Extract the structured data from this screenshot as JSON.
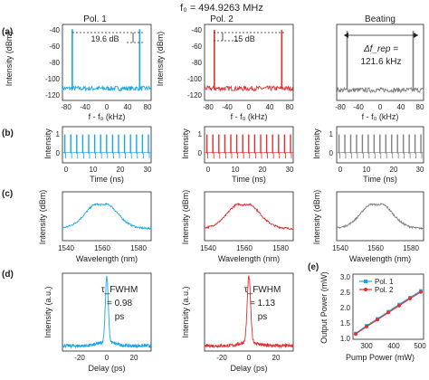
{
  "figure_title": "f₀ = 494.9263 MHz",
  "colors": {
    "pol1": "#1aa5e6",
    "pol2": "#e32d2d",
    "beat": "#7f7f7f",
    "axis": "#222222",
    "dash": "#222222"
  },
  "row_a": {
    "label": "(a)",
    "panels": [
      {
        "title": "Pol. 1",
        "annotation": "19.6 dB",
        "xlabel": "f - f₀ (kHz)",
        "ylabel": "Intensity (dBm)",
        "xticks": [
          "-80",
          "-40",
          "0",
          "40",
          "80"
        ],
        "yticks": [
          "-40",
          "-60",
          "-80",
          "-100",
          "-120"
        ]
      },
      {
        "title": "Pol. 2",
        "annotation": "15 dB",
        "xlabel": "f - f₀ (kHz)",
        "ylabel": "Intensity (dBm)",
        "xticks": [
          "-80",
          "-40",
          "0",
          "40",
          "80"
        ],
        "yticks": [
          "-40",
          "-60",
          "-80",
          "-100",
          "-120"
        ]
      },
      {
        "title": "Beating",
        "annotation_line1": "Δf_rep =",
        "annotation_line2": "121.6 kHz",
        "xlabel": "f - f₀ (kHz)",
        "xticks": [
          "-80",
          "-40",
          "0",
          "40",
          "80"
        ]
      }
    ]
  },
  "row_b": {
    "label": "(b)",
    "panels": [
      {
        "xlabel": "Time (ns)",
        "ylabel": "Intensity",
        "xticks": [
          "0",
          "10",
          "20",
          "30"
        ],
        "yticks": [
          "1",
          "0"
        ]
      },
      {
        "xlabel": "Time (ns)",
        "ylabel": "Intensity",
        "xticks": [
          "0",
          "10",
          "20",
          "30"
        ],
        "yticks": [
          "1",
          "0"
        ]
      },
      {
        "xlabel": "Time (ns)",
        "ylabel": "Intensity",
        "xticks": [
          "0",
          "10",
          "20",
          "30"
        ],
        "yticks": [
          "1",
          "0"
        ]
      }
    ]
  },
  "row_c": {
    "label": "(c)",
    "panels": [
      {
        "xlabel": "Wavelength (nm)",
        "ylabel": "Intensity (dBm)",
        "xticks": [
          "1540",
          "1560",
          "1580"
        ]
      },
      {
        "xlabel": "Wavelength (nm)",
        "ylabel": "Intensity (dBm)",
        "xticks": [
          "1540",
          "1560",
          "1580"
        ]
      },
      {
        "xlabel": "Wavelength (nm)",
        "ylabel": "Intensity (dBm)",
        "xticks": [
          "1540",
          "1560",
          "1580"
        ]
      }
    ]
  },
  "row_d": {
    "label": "(d)",
    "panels": [
      {
        "annotation_line1": "τ_FWHM",
        "annotation_line2": "= 0.98",
        "annotation_line3": "ps",
        "xlabel": "Delay (ps)",
        "ylabel": "Intensity (a.u.)",
        "xticks": [
          "-20",
          "0",
          "20"
        ]
      },
      {
        "annotation_line1": "τ_FWHM",
        "annotation_line2": "= 1.13",
        "annotation_line3": "ps",
        "xlabel": "Delay (ps)",
        "ylabel": "Intensity (a.u.)",
        "xticks": [
          "-20",
          "0",
          "20"
        ]
      }
    ]
  },
  "panel_e": {
    "label": "(e)",
    "xlabel": "Pump Power (mW)",
    "ylabel": "Output Power (mW)",
    "xticks": [
      "300",
      "400",
      "500"
    ],
    "yticks": [
      "1.0",
      "1.5",
      "2.0",
      "2.5",
      "3.0"
    ],
    "legend": [
      "Pol. 1",
      "Pol. 2"
    ]
  },
  "chart_data": [
    {
      "type": "line",
      "panel": "a1",
      "x": [
        -62.3,
        59.3
      ],
      "y": [
        -36,
        -36
      ],
      "xlim": [
        -80,
        80
      ],
      "ylim": [
        -125,
        -30
      ],
      "noise_floor": -110
    },
    {
      "type": "line",
      "panel": "a2",
      "x": [
        -62.3,
        59.3
      ],
      "y": [
        -37,
        -37
      ],
      "xlim": [
        -80,
        80
      ],
      "ylim": [
        -125,
        -30
      ],
      "noise_floor": -110
    },
    {
      "type": "line",
      "panel": "a3",
      "x": [
        -60.8,
        60.8
      ],
      "y": [
        -38,
        -38
      ],
      "xlim": [
        -80,
        80
      ],
      "ylim": [
        -125,
        -30
      ],
      "noise_floor": -112
    },
    {
      "type": "line",
      "panel": "b1",
      "period_ns": 2.02,
      "xlim": [
        0,
        30
      ],
      "ylim": [
        -0.6,
        1.5
      ]
    },
    {
      "type": "line",
      "panel": "b2",
      "period_ns": 2.02,
      "xlim": [
        0,
        30
      ],
      "ylim": [
        -0.6,
        1.5
      ]
    },
    {
      "type": "line",
      "panel": "b3",
      "period_ns": 2.02,
      "xlim": [
        0,
        30
      ],
      "ylim": [
        -0.6,
        1.5
      ]
    },
    {
      "type": "line",
      "panel": "c1",
      "center_nm": 1562,
      "xlim": [
        1540,
        1590
      ]
    },
    {
      "type": "line",
      "panel": "c2",
      "center_nm": 1562,
      "xlim": [
        1540,
        1590
      ]
    },
    {
      "type": "line",
      "panel": "c3",
      "center_nm": 1563,
      "xlim": [
        1540,
        1590
      ]
    },
    {
      "type": "line",
      "panel": "d1",
      "fwhm_ps": 0.98,
      "xlim": [
        -30,
        30
      ]
    },
    {
      "type": "line",
      "panel": "d2",
      "fwhm_ps": 1.13,
      "xlim": [
        -30,
        30
      ]
    },
    {
      "type": "line",
      "panel": "e",
      "x": [
        260,
        300,
        340,
        380,
        420,
        460,
        500
      ],
      "series": [
        {
          "name": "Pol. 1",
          "values": [
            1.18,
            1.42,
            1.63,
            1.85,
            2.07,
            2.28,
            2.49
          ]
        },
        {
          "name": "Pol. 2",
          "values": [
            1.16,
            1.39,
            1.6,
            1.82,
            2.03,
            2.25,
            2.45
          ]
        }
      ],
      "xlim": [
        250,
        510
      ],
      "ylim": [
        1.0,
        3.0
      ]
    }
  ]
}
